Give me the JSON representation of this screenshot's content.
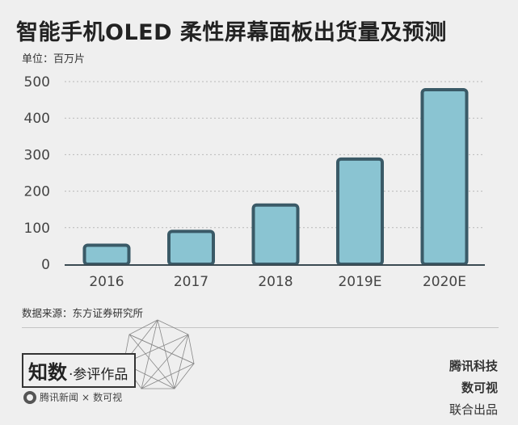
{
  "title": "智能手机OLED 柔性屏幕面板出货量及预测",
  "unit_label": "单位：百万片",
  "source": "数据来源：东方证券研究所",
  "brand": {
    "main": "知数",
    "sub": "·参评作品",
    "footer_left": "腾讯新闻",
    "footer_sep": "×",
    "footer_right": "数可视"
  },
  "credits": [
    "腾讯科技",
    "数可视",
    "联合出品"
  ],
  "colors": {
    "bar_fill": "#8ac4d2",
    "bar_stroke": "#3a5a67",
    "background": "#efefef"
  },
  "chart_data": {
    "type": "bar",
    "title": "智能手机OLED 柔性屏幕面板出货量及预测",
    "ylabel": "单位：百万片",
    "xlabel": "",
    "categories": [
      "2016",
      "2017",
      "2018",
      "2019E",
      "2020E"
    ],
    "values": [
      52,
      90,
      162,
      288,
      478
    ],
    "ylim": [
      0,
      500
    ],
    "yticks": [
      0,
      100,
      200,
      300,
      400,
      500
    ],
    "grid": true,
    "legend": "none"
  }
}
